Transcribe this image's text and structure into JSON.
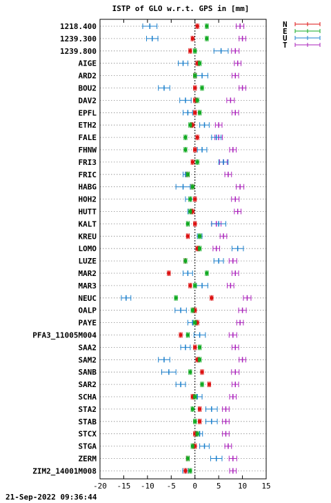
{
  "chart_data": {
    "type": "scatter",
    "title": "ISTP of GLO w.r.t. GPS in [mm]",
    "xlim": [
      -20,
      15
    ],
    "x_ticks": [
      -20,
      -15,
      -10,
      -5,
      0,
      5,
      10,
      15
    ],
    "footer": "21-Sep-2022 09:36:44",
    "grid": "horizontal dotted",
    "legend_position": "top-right outside",
    "stations": [
      "1218.400",
      "1239.300",
      "1239.800",
      "AIGE",
      "ARD2",
      "BOU2",
      "DAV2",
      "EPFL",
      "ETH2",
      "FALE",
      "FHNW",
      "FRI3",
      "FRIC",
      "HABG",
      "HOH2",
      "HUTT",
      "KALT",
      "KREU",
      "LOMO",
      "LUZE",
      "MAR2",
      "MAR3",
      "NEUC",
      "OALP",
      "PAYE",
      "PFA3_11005M004",
      "SAA2",
      "SAM2",
      "SANB",
      "SAR2",
      "SCHA",
      "STA2",
      "STAB",
      "STCX",
      "STGA",
      "ZERM",
      "ZIM2_14001M008"
    ],
    "series": [
      {
        "name": "N",
        "color": "#dd1111",
        "values": [
          0.5,
          -0.5,
          -1.0,
          0.5,
          0.0,
          0.0,
          0.0,
          0.0,
          -0.5,
          0.5,
          0.0,
          -0.5,
          -1.5,
          -0.5,
          0.0,
          -0.5,
          0.0,
          -1.5,
          0.5,
          -2.0,
          -5.5,
          -1.0,
          3.5,
          0.0,
          0.5,
          -3.0,
          0.0,
          0.5,
          1.5,
          3.0,
          -0.5,
          1.0,
          1.0,
          0.0,
          0.0,
          -1.5,
          -2.0
        ],
        "errors": [
          0.3,
          0.3,
          0.3,
          0.3,
          0.3,
          0.3,
          0.3,
          0.3,
          0.3,
          0.3,
          0.3,
          0.3,
          0.3,
          0.3,
          0.3,
          0.3,
          0.3,
          0.3,
          0.3,
          0.3,
          0.3,
          0.3,
          0.3,
          0.3,
          0.3,
          0.3,
          0.3,
          0.3,
          0.3,
          0.3,
          0.3,
          0.3,
          0.3,
          0.3,
          0.3,
          0.3,
          0.3
        ]
      },
      {
        "name": "E",
        "color": "#11aa22",
        "values": [
          2.5,
          2.5,
          0.0,
          1.0,
          0.0,
          1.5,
          0.5,
          1.0,
          -1.0,
          -2.0,
          -2.0,
          0.5,
          -1.5,
          -0.5,
          -1.0,
          -1.0,
          -1.5,
          1.0,
          1.0,
          -2.0,
          2.5,
          0.0,
          -4.0,
          -0.5,
          0.0,
          -1.5,
          1.0,
          1.0,
          -1.0,
          1.5,
          0.0,
          -0.5,
          0.0,
          0.5,
          -0.5,
          -1.5,
          -1.0
        ],
        "errors": [
          0.3,
          0.3,
          0.3,
          0.3,
          0.3,
          0.3,
          0.3,
          0.3,
          0.3,
          0.3,
          0.3,
          0.3,
          0.3,
          0.3,
          0.3,
          0.3,
          0.3,
          0.3,
          0.3,
          0.3,
          0.3,
          0.3,
          0.3,
          0.3,
          0.3,
          0.3,
          0.3,
          0.3,
          0.3,
          0.3,
          0.3,
          0.3,
          0.3,
          0.3,
          0.3,
          0.3,
          0.3
        ]
      },
      {
        "name": "U",
        "color": "#1a7fcc",
        "values": [
          -9.5,
          -9.0,
          5.5,
          -2.5,
          1.5,
          -6.5,
          -2.0,
          -1.5,
          2.0,
          4.5,
          1.5,
          6.0,
          -2.0,
          -2.5,
          -1.0,
          -1.0,
          5.0,
          1.0,
          9.0,
          5.0,
          -1.5,
          1.5,
          -14.5,
          -3.0,
          -0.5,
          1.0,
          -2.0,
          -6.5,
          -5.5,
          -3.0,
          0.5,
          3.5,
          3.5,
          1.0,
          2.0,
          4.5,
          -2.0
        ],
        "errors": [
          1.5,
          1.2,
          1.5,
          1.0,
          1.2,
          1.2,
          1.2,
          1.0,
          1.0,
          1.0,
          1.0,
          1.0,
          0.5,
          1.5,
          1.0,
          0.5,
          1.5,
          0.5,
          1.2,
          1.0,
          1.0,
          1.2,
          1.0,
          1.2,
          1.0,
          1.2,
          1.0,
          1.2,
          1.5,
          1.0,
          1.0,
          1.2,
          1.2,
          0.6,
          1.0,
          1.2,
          0.6
        ]
      },
      {
        "name": "T",
        "color": "#aa22bb",
        "values": [
          9.5,
          10.0,
          8.5,
          9.0,
          8.5,
          10.0,
          7.5,
          8.5,
          5.0,
          5.0,
          8.0,
          6.0,
          7.0,
          9.5,
          8.5,
          9.0,
          4.5,
          6.0,
          4.5,
          8.0,
          8.5,
          7.5,
          11.0,
          10.0,
          9.5,
          8.0,
          8.5,
          10.0,
          8.5,
          8.5,
          8.0,
          6.5,
          6.5,
          6.5,
          7.0,
          8.0,
          8.0
        ],
        "errors": [
          0.8,
          0.7,
          0.8,
          0.7,
          0.7,
          0.7,
          0.8,
          0.7,
          0.7,
          0.8,
          0.7,
          0.8,
          0.7,
          0.8,
          0.8,
          0.7,
          1.0,
          0.7,
          0.7,
          0.8,
          0.7,
          0.7,
          0.8,
          0.8,
          0.7,
          0.8,
          0.7,
          0.7,
          0.8,
          0.7,
          0.7,
          0.7,
          0.7,
          0.7,
          0.7,
          0.8,
          0.7
        ]
      }
    ]
  }
}
